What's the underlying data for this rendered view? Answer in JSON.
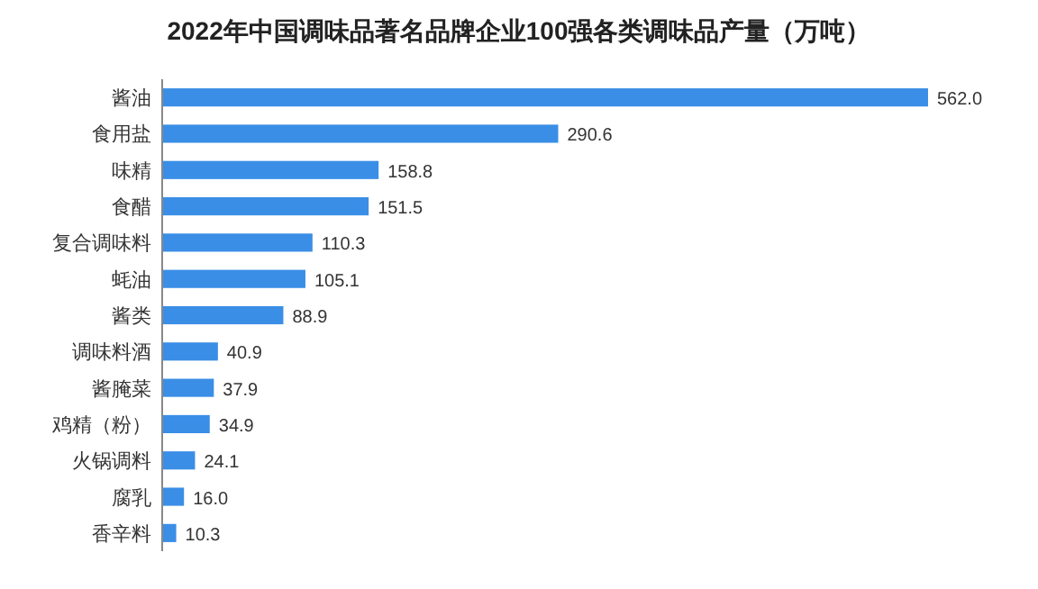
{
  "chart_data": {
    "type": "bar",
    "orientation": "horizontal",
    "title": "2022年中国调味品著名品牌企业100强各类调味品产量（万吨）",
    "categories": [
      "酱油",
      "食用盐",
      "味精",
      "食醋",
      "复合调味料",
      "蚝油",
      "酱类",
      "调味料酒",
      "酱腌菜",
      "鸡精（粉）",
      "火锅调料",
      "腐乳",
      "香辛料"
    ],
    "values": [
      562.0,
      290.6,
      158.8,
      151.5,
      110.3,
      105.1,
      88.9,
      40.9,
      37.9,
      34.9,
      24.1,
      16.0,
      10.3
    ],
    "value_labels": [
      "562.0",
      "290.6",
      "158.8",
      "151.5",
      "110.3",
      "105.1",
      "88.9",
      "40.9",
      "37.9",
      "34.9",
      "24.1",
      "16.0",
      "10.3"
    ],
    "color": "#3a8ee6"
  }
}
